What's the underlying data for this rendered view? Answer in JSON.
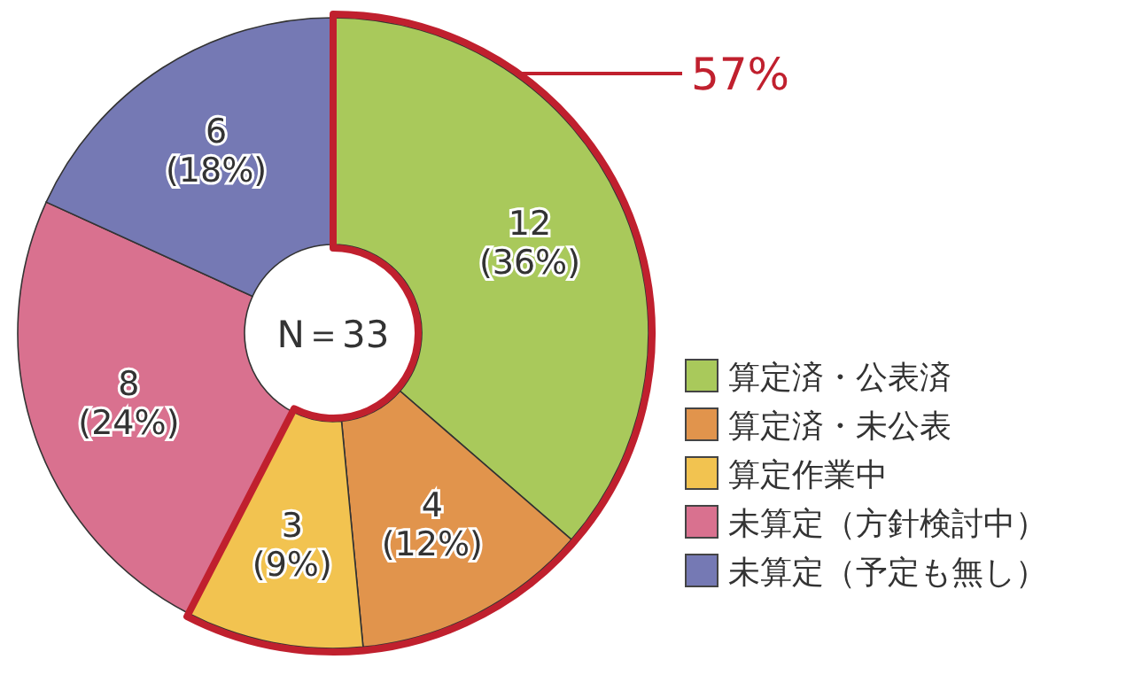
{
  "chart_data": {
    "type": "donut",
    "categories": [
      "算定済・公表済",
      "算定済・未公表",
      "算定作業中",
      "未算定（方針検討中）",
      "未算定（予定も無し）"
    ],
    "values": [
      12,
      4,
      3,
      8,
      6
    ],
    "colors": [
      "#a9c95b",
      "#e1944c",
      "#f2c350",
      "#d9718f",
      "#7579b4"
    ],
    "value_labels": [
      "12\n(36%)",
      "4\n(12%)",
      "3\n(9%)",
      "8\n(24%)",
      "6\n(18%)"
    ],
    "annotations": [
      "N＝33",
      "57%"
    ],
    "legend": "bottom right"
  }
}
